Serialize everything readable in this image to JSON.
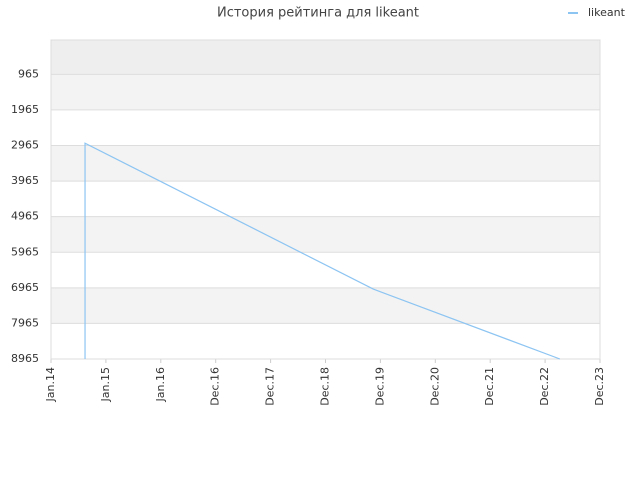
{
  "chart_data": {
    "type": "line",
    "title": "История рейтинга для likeant",
    "x": [
      0.62,
      0.62,
      5.87,
      9.27
    ],
    "series": [
      {
        "name": "likeant",
        "color": "#8cc4f2",
        "values": [
          8965,
          2900,
          7000,
          8965
        ]
      }
    ],
    "xlim": [
      0,
      10
    ],
    "xticks": [
      {
        "value": 0,
        "label": "Jan.14"
      },
      {
        "value": 1,
        "label": "Jan.15"
      },
      {
        "value": 2,
        "label": "Jan.16"
      },
      {
        "value": 3,
        "label": "Dec.16"
      },
      {
        "value": 4,
        "label": "Dec.17"
      },
      {
        "value": 5,
        "label": "Dec.18"
      },
      {
        "value": 6,
        "label": "Dec.19"
      },
      {
        "value": 7,
        "label": "Dec.20"
      },
      {
        "value": 8,
        "label": "Dec.21"
      },
      {
        "value": 9,
        "label": "Dec.22"
      },
      {
        "value": 10,
        "label": "Dec.23"
      }
    ],
    "ylim": [
      8965,
      0
    ],
    "y_inverted": true,
    "yticks": [
      965,
      1965,
      2965,
      3965,
      4965,
      5965,
      6965,
      7965,
      8965
    ],
    "grid": true,
    "legend": "top-right"
  }
}
